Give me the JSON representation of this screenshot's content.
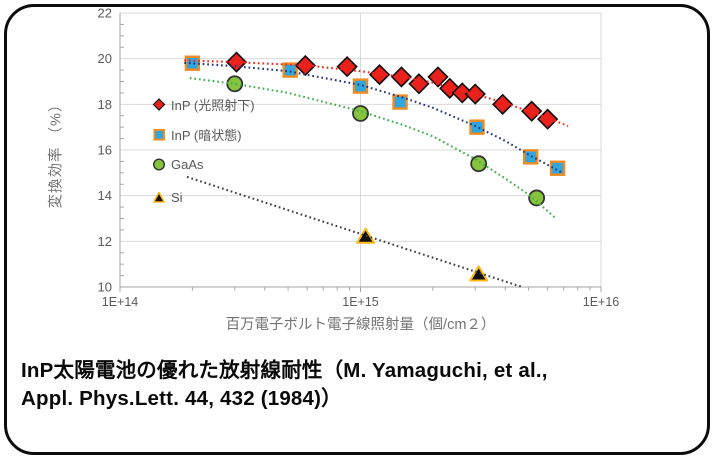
{
  "frame": {
    "border_color": "#0c0c0c",
    "background": "#ffffff"
  },
  "caption": {
    "line1": "InP太陽電池の優れた放射線耐性（M. Yamaguchi, et al.,",
    "line2": "Appl. Phys.Lett. 44, 432 (1984)）"
  },
  "text_colors": {
    "tick": "#595959",
    "axis_title": "#737373",
    "legend": "#595959",
    "caption": "#0a0a0a"
  },
  "chart_data": {
    "type": "scatter",
    "x_axis": {
      "label": "百万電子ボルト電子線照射量（個/cm２）",
      "scale": "log",
      "tick_labels": [
        "1E+14",
        "1E+15",
        "1E+16"
      ],
      "tick_values": [
        100000000000000.0,
        1000000000000000.0,
        1e+16
      ],
      "minor_ticks_per_decade": [
        2,
        3,
        4,
        5,
        6,
        7,
        8,
        9
      ],
      "range": [
        100000000000000.0,
        1e+16
      ]
    },
    "y_axis": {
      "label": "変換効率 （%）",
      "tick_values": [
        22,
        20,
        18,
        16,
        14,
        12,
        10
      ],
      "range": [
        10,
        22
      ],
      "unit": "%"
    },
    "grid": {
      "color": "#d9d9d9",
      "axis_color": "#a6a6a6",
      "y_gridlines": [
        22,
        20,
        18,
        16,
        14,
        12
      ],
      "x_gridlines": [
        1000000000000000.0,
        1e+16
      ]
    },
    "legend": {
      "position": "inside-top-left"
    },
    "series": [
      {
        "name": "InP (光照射下)",
        "marker": "diamond",
        "fill": "#e8211c",
        "stroke": "#111111",
        "line_color": "#fb2318",
        "points": [
          [
            305000000000000.0,
            19.85
          ],
          [
            590000000000000.0,
            19.7
          ],
          [
            880000000000000.0,
            19.65
          ],
          [
            1200000000000000.0,
            19.3
          ],
          [
            1480000000000000.0,
            19.2
          ],
          [
            1750000000000000.0,
            18.9
          ],
          [
            2100000000000000.0,
            19.2
          ],
          [
            2350000000000000.0,
            18.7
          ],
          [
            2650000000000000.0,
            18.5
          ],
          [
            3000000000000000.0,
            18.45
          ],
          [
            3900000000000000.0,
            18.0
          ],
          [
            5150000000000000.0,
            17.7
          ],
          [
            6000000000000000.0,
            17.35
          ]
        ],
        "trend": [
          [
            185000000000000.0,
            19.93
          ],
          [
            300000000000000.0,
            19.85
          ],
          [
            600000000000000.0,
            19.7
          ],
          [
            1000000000000000.0,
            19.45
          ],
          [
            1500000000000000.0,
            19.2
          ],
          [
            2000000000000000.0,
            18.95
          ],
          [
            3000000000000000.0,
            18.45
          ],
          [
            4000000000000000.0,
            18.05
          ],
          [
            5000000000000000.0,
            17.7
          ],
          [
            6000000000000000.0,
            17.4
          ],
          [
            7300000000000000.0,
            17.05
          ]
        ]
      },
      {
        "name": "InP (暗状態)",
        "marker": "square",
        "fill": "#30a6de",
        "stroke": "#ef8b22",
        "line_color": "#27357e",
        "points": [
          [
            200000000000000.0,
            19.8
          ],
          [
            510000000000000.0,
            19.5
          ],
          [
            1000000000000000.0,
            18.8
          ],
          [
            1460000000000000.0,
            18.1
          ],
          [
            3050000000000000.0,
            17.0
          ],
          [
            5100000000000000.0,
            15.7
          ],
          [
            6600000000000000.0,
            15.2
          ]
        ],
        "trend": [
          [
            185000000000000.0,
            19.82
          ],
          [
            300000000000000.0,
            19.67
          ],
          [
            500000000000000.0,
            19.45
          ],
          [
            1000000000000000.0,
            18.85
          ],
          [
            1500000000000000.0,
            18.3
          ],
          [
            2000000000000000.0,
            17.85
          ],
          [
            3000000000000000.0,
            17.05
          ],
          [
            4000000000000000.0,
            16.4
          ],
          [
            5000000000000000.0,
            15.8
          ],
          [
            6000000000000000.0,
            15.35
          ],
          [
            6900000000000000.0,
            15.0
          ]
        ]
      },
      {
        "name": "GaAs",
        "marker": "circle",
        "fill": "#86c43d",
        "stroke": "#333333",
        "line_color": "#3eb04b",
        "points": [
          [
            300000000000000.0,
            18.9
          ],
          [
            1000000000000000.0,
            17.6
          ],
          [
            3100000000000000.0,
            15.4
          ],
          [
            5400000000000000.0,
            13.9
          ]
        ],
        "trend": [
          [
            195000000000000.0,
            19.15
          ],
          [
            300000000000000.0,
            18.9
          ],
          [
            500000000000000.0,
            18.5
          ],
          [
            1000000000000000.0,
            17.7
          ],
          [
            1500000000000000.0,
            17.1
          ],
          [
            2000000000000000.0,
            16.6
          ],
          [
            3000000000000000.0,
            15.6
          ],
          [
            4000000000000000.0,
            14.75
          ],
          [
            5000000000000000.0,
            14.05
          ],
          [
            6500000000000000.0,
            13.0
          ]
        ]
      },
      {
        "name": "Si",
        "marker": "triangle",
        "fill": "#0f0f0f",
        "stroke": "#fdb813",
        "line_color": "#404040",
        "points": [
          [
            1050000000000000.0,
            12.2
          ],
          [
            3100000000000000.0,
            10.55
          ]
        ],
        "trend": [
          [
            190000000000000.0,
            14.82
          ],
          [
            4700000000000000.0,
            10.0
          ]
        ]
      }
    ]
  }
}
